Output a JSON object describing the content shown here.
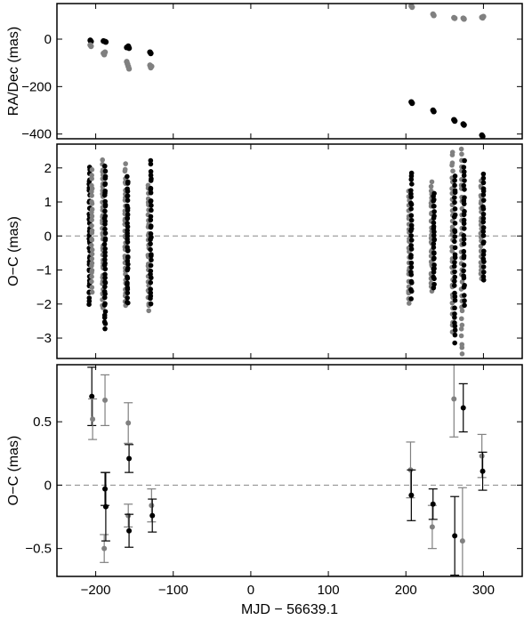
{
  "colors": {
    "black_series": "#000000",
    "gray_series": "#808080",
    "zero_line": "#888888"
  },
  "chart_data": [
    {
      "type": "scatter",
      "ylabel": "RA/Dec (mas)",
      "xlim": [
        -250,
        350
      ],
      "ylim": [
        -420,
        150
      ],
      "yticks": [
        -400,
        -200,
        0
      ],
      "show_xtick_labels": false,
      "series": [
        {
          "color": "black",
          "points": [
            [
              -207,
              -5
            ],
            [
              -206,
              -10
            ],
            [
              -190,
              -8
            ],
            [
              -188,
              -10
            ],
            [
              -187,
              -12
            ],
            [
              -160,
              -35
            ],
            [
              -158,
              -30
            ],
            [
              -157,
              -38
            ],
            [
              -130,
              -55
            ],
            [
              -129,
              -60
            ],
            [
              207,
              -265
            ],
            [
              208,
              -270
            ],
            [
              235,
              -300
            ],
            [
              236,
              -305
            ],
            [
              262,
              -340
            ],
            [
              263,
              -345
            ],
            [
              274,
              -358
            ],
            [
              275,
              -362
            ],
            [
              298,
              -405
            ],
            [
              299,
              -410
            ]
          ]
        },
        {
          "color": "gray",
          "points": [
            [
              -207,
              -25
            ],
            [
              -206,
              -30
            ],
            [
              -190,
              -60
            ],
            [
              -189,
              -65
            ],
            [
              -188,
              -55
            ],
            [
              -160,
              -95
            ],
            [
              -159,
              -105
            ],
            [
              -158,
              -115
            ],
            [
              -157,
              -125
            ],
            [
              -130,
              -110
            ],
            [
              -129,
              -120
            ],
            [
              -128,
              -115
            ],
            [
              207,
              140
            ],
            [
              208,
              135
            ],
            [
              235,
              105
            ],
            [
              236,
              100
            ],
            [
              262,
              90
            ],
            [
              263,
              88
            ],
            [
              274,
              88
            ],
            [
              275,
              85
            ],
            [
              298,
              92
            ],
            [
              299,
              90
            ],
            [
              300,
              95
            ]
          ]
        }
      ]
    },
    {
      "type": "scatter",
      "ylabel": "O−C (mas)",
      "xlim": [
        -250,
        350
      ],
      "ylim": [
        -3.6,
        2.7
      ],
      "yticks": [
        -3,
        -2,
        -1,
        0,
        1,
        2
      ],
      "zero_line": true,
      "show_xtick_labels": false,
      "dense_columns": [
        {
          "x": -208,
          "color": "black",
          "min": -2.0,
          "max": 2.0,
          "n": 40
        },
        {
          "x": -205,
          "color": "gray",
          "min": -1.6,
          "max": 1.9,
          "n": 30
        },
        {
          "x": -191,
          "color": "gray",
          "min": -2.1,
          "max": 2.2,
          "n": 40
        },
        {
          "x": -188,
          "color": "black",
          "min": -2.7,
          "max": 2.0,
          "n": 45
        },
        {
          "x": -162,
          "color": "gray",
          "min": -2.0,
          "max": 2.1,
          "n": 35
        },
        {
          "x": -159,
          "color": "black",
          "min": -2.0,
          "max": 1.7,
          "n": 40
        },
        {
          "x": -132,
          "color": "gray",
          "min": -2.2,
          "max": 1.5,
          "n": 30
        },
        {
          "x": -129,
          "color": "black",
          "min": -2.0,
          "max": 2.2,
          "n": 35
        },
        {
          "x": 204,
          "color": "gray",
          "min": -2.0,
          "max": 1.3,
          "n": 25
        },
        {
          "x": 207,
          "color": "black",
          "min": -1.8,
          "max": 1.9,
          "n": 30
        },
        {
          "x": 233,
          "color": "gray",
          "min": -1.6,
          "max": 1.6,
          "n": 30
        },
        {
          "x": 236,
          "color": "black",
          "min": -1.5,
          "max": 1.3,
          "n": 30
        },
        {
          "x": 260,
          "color": "gray",
          "min": -2.8,
          "max": 2.5,
          "n": 35
        },
        {
          "x": 263,
          "color": "black",
          "min": -3.1,
          "max": 1.8,
          "n": 35
        },
        {
          "x": 272,
          "color": "gray",
          "min": -3.5,
          "max": 2.6,
          "n": 35
        },
        {
          "x": 275,
          "color": "black",
          "min": -2.0,
          "max": 2.2,
          "n": 30
        },
        {
          "x": 297,
          "color": "gray",
          "min": -1.2,
          "max": 1.6,
          "n": 25
        },
        {
          "x": 300,
          "color": "black",
          "min": -1.3,
          "max": 1.8,
          "n": 25
        }
      ]
    },
    {
      "type": "scatter",
      "ylabel": "O−C (mas)",
      "xlabel": "MJD − 56639.1",
      "xlim": [
        -250,
        350
      ],
      "ylim": [
        -0.72,
        0.95
      ],
      "yticks": [
        -0.5,
        0,
        0.5
      ],
      "xticks": [
        -200,
        -100,
        0,
        100,
        200,
        300
      ],
      "zero_line": true,
      "error_bars": [
        {
          "color": "black",
          "x": -205,
          "y": 0.7,
          "err": 0.23
        },
        {
          "color": "gray",
          "x": -204,
          "y": 0.52,
          "err": 0.16
        },
        {
          "color": "black",
          "x": -188,
          "y": -0.03,
          "err": 0.13
        },
        {
          "color": "gray",
          "x": -188,
          "y": 0.67,
          "err": 0.2
        },
        {
          "color": "gray",
          "x": -189,
          "y": -0.5,
          "err": 0.11
        },
        {
          "color": "black",
          "x": -187,
          "y": -0.17,
          "err": 0.27
        },
        {
          "color": "gray",
          "x": -158,
          "y": 0.49,
          "err": 0.16
        },
        {
          "color": "black",
          "x": -157,
          "y": 0.21,
          "err": 0.11
        },
        {
          "color": "gray",
          "x": -158,
          "y": -0.24,
          "err": 0.09
        },
        {
          "color": "black",
          "x": -157,
          "y": -0.36,
          "err": 0.13
        },
        {
          "color": "gray",
          "x": -128,
          "y": -0.16,
          "err": 0.13
        },
        {
          "color": "black",
          "x": -127,
          "y": -0.24,
          "err": 0.13
        },
        {
          "color": "gray",
          "x": 206,
          "y": 0.12,
          "err": 0.22
        },
        {
          "color": "black",
          "x": 207,
          "y": -0.08,
          "err": 0.2
        },
        {
          "color": "gray",
          "x": 234,
          "y": -0.33,
          "err": 0.17
        },
        {
          "color": "black",
          "x": 235,
          "y": -0.15,
          "err": 0.12
        },
        {
          "color": "gray",
          "x": 262,
          "y": 0.68,
          "err": 0.3
        },
        {
          "color": "black",
          "x": 263,
          "y": -0.4,
          "err": 0.31
        },
        {
          "color": "gray",
          "x": 273,
          "y": -0.44,
          "err": 0.42
        },
        {
          "color": "black",
          "x": 274,
          "y": 0.61,
          "err": 0.19
        },
        {
          "color": "gray",
          "x": 298,
          "y": 0.23,
          "err": 0.17
        },
        {
          "color": "black",
          "x": 299,
          "y": 0.11,
          "err": 0.15
        }
      ]
    }
  ]
}
